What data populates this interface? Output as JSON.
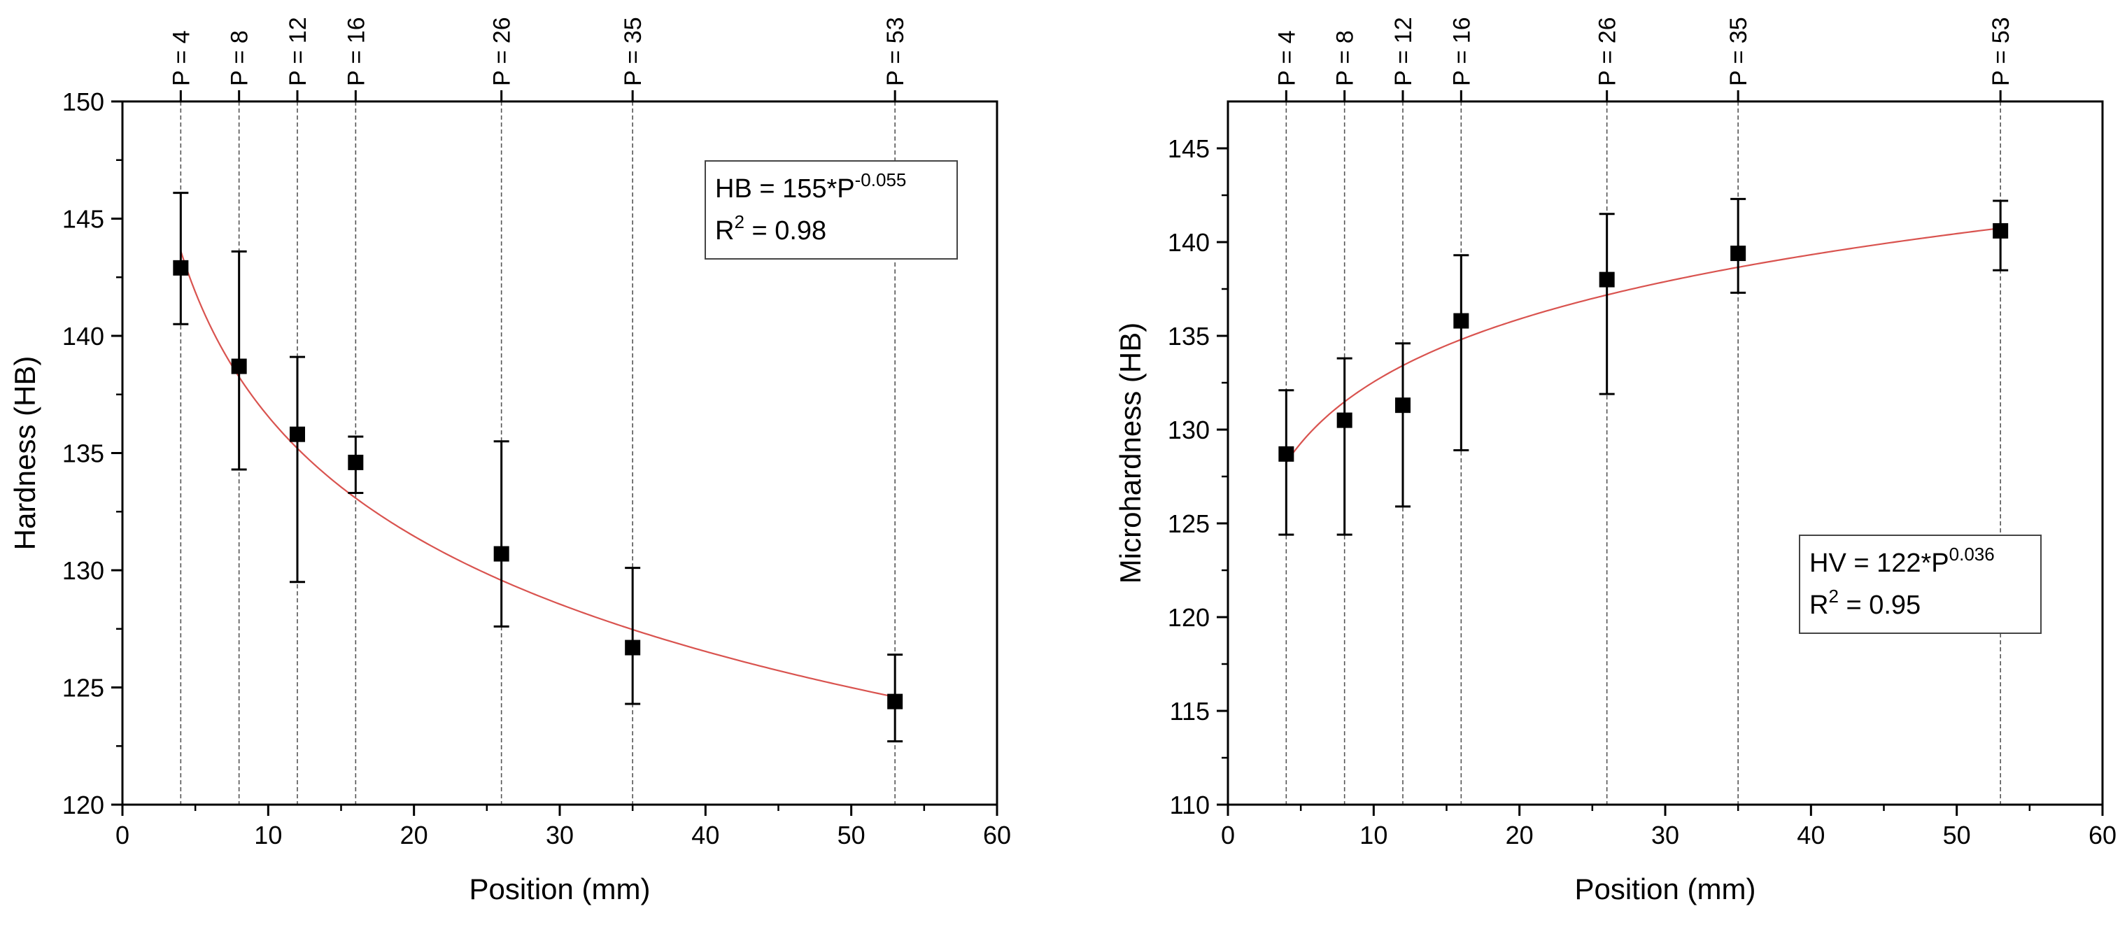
{
  "colors": {
    "fit_line": "#d9534f",
    "marker": "#000000",
    "axis": "#000000",
    "guide": "#555555"
  },
  "chart_data": [
    {
      "type": "scatter",
      "xlabel": "Position (mm)",
      "ylabel": "Hardness (HB)",
      "xlim": [
        0,
        60
      ],
      "ylim": [
        120,
        150
      ],
      "xticks": [
        0,
        10,
        20,
        30,
        40,
        50,
        60
      ],
      "xtick_labels": [
        "0",
        "10",
        "20",
        "30",
        "40",
        "50",
        "60"
      ],
      "yticks": [
        120,
        125,
        130,
        135,
        140,
        145,
        150
      ],
      "ytick_labels": [
        "120",
        "125",
        "130",
        "135",
        "140",
        "145",
        "150"
      ],
      "y_minor_step": 2.5,
      "x_minor_step": 5,
      "positions": [
        4,
        8,
        12,
        16,
        26,
        35,
        53
      ],
      "position_labels": [
        "P = 4",
        "P = 8",
        "P = 12",
        "P = 16",
        "P = 26",
        "P = 35",
        "P = 53"
      ],
      "points": [
        {
          "x": 4,
          "y": 142.9,
          "low": 140.5,
          "high": 146.1
        },
        {
          "x": 8,
          "y": 138.7,
          "low": 134.3,
          "high": 143.6
        },
        {
          "x": 12,
          "y": 135.8,
          "low": 129.5,
          "high": 139.1
        },
        {
          "x": 16,
          "y": 134.6,
          "low": 133.3,
          "high": 135.7
        },
        {
          "x": 26,
          "y": 130.7,
          "low": 127.6,
          "high": 135.5
        },
        {
          "x": 35,
          "y": 126.7,
          "low": 124.3,
          "high": 130.1
        },
        {
          "x": 53,
          "y": 124.4,
          "low": 122.7,
          "high": 126.4
        }
      ],
      "fit": {
        "a": 155,
        "b": -0.055,
        "x_from": 4,
        "x_to": 53
      },
      "annotation": {
        "line1_base": "HB = 155*P",
        "line1_sup": "-0.055",
        "line2_base": "R",
        "line2_sup": "2",
        "line2_tail": " = 0.98"
      }
    },
    {
      "type": "scatter",
      "xlabel": "Position (mm)",
      "ylabel": "Microhardness (HB)",
      "xlim": [
        0,
        60
      ],
      "ylim": [
        110,
        147.5
      ],
      "xticks": [
        0,
        10,
        20,
        30,
        40,
        50,
        60
      ],
      "xtick_labels": [
        "0",
        "10",
        "20",
        "30",
        "40",
        "50",
        "60"
      ],
      "yticks": [
        110,
        115,
        120,
        125,
        130,
        135,
        140,
        145
      ],
      "ytick_labels": [
        "110",
        "115",
        "120",
        "125",
        "130",
        "135",
        "140",
        "145"
      ],
      "y_minor_step": 2.5,
      "x_minor_step": 5,
      "positions": [
        4,
        8,
        12,
        16,
        26,
        35,
        53
      ],
      "position_labels": [
        "P = 4",
        "P = 8",
        "P = 12",
        "P = 16",
        "P = 26",
        "P = 35",
        "P = 53"
      ],
      "points": [
        {
          "x": 4,
          "y": 128.7,
          "low": 124.4,
          "high": 132.1
        },
        {
          "x": 8,
          "y": 130.5,
          "low": 124.4,
          "high": 133.8
        },
        {
          "x": 12,
          "y": 131.3,
          "low": 125.9,
          "high": 134.6
        },
        {
          "x": 16,
          "y": 135.8,
          "low": 128.9,
          "high": 139.3
        },
        {
          "x": 26,
          "y": 138.0,
          "low": 131.9,
          "high": 141.5
        },
        {
          "x": 35,
          "y": 139.4,
          "low": 137.3,
          "high": 142.3
        },
        {
          "x": 53,
          "y": 140.6,
          "low": 138.5,
          "high": 142.2
        }
      ],
      "fit": {
        "a": 122,
        "b": 0.036,
        "x_from": 4,
        "x_to": 53
      },
      "annotation": {
        "line1_base": "HV = 122*P",
        "line1_sup": "0.036",
        "line2_base": "R",
        "line2_sup": "2",
        "line2_tail": " = 0.95"
      }
    }
  ]
}
